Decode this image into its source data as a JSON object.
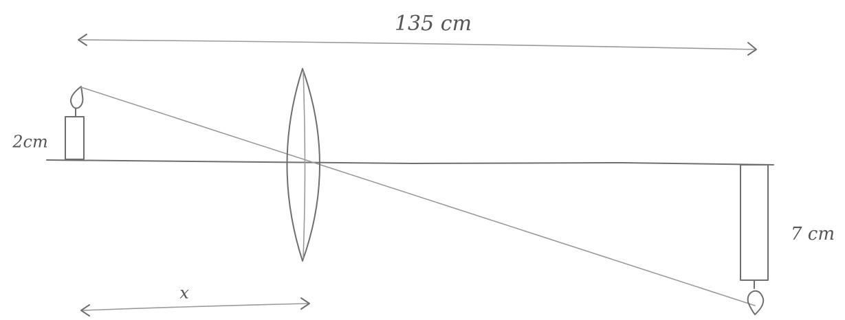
{
  "labels": {
    "total_distance": "135 cm",
    "object_height": "2cm",
    "image_height": "7 cm",
    "object_distance": "x"
  }
}
